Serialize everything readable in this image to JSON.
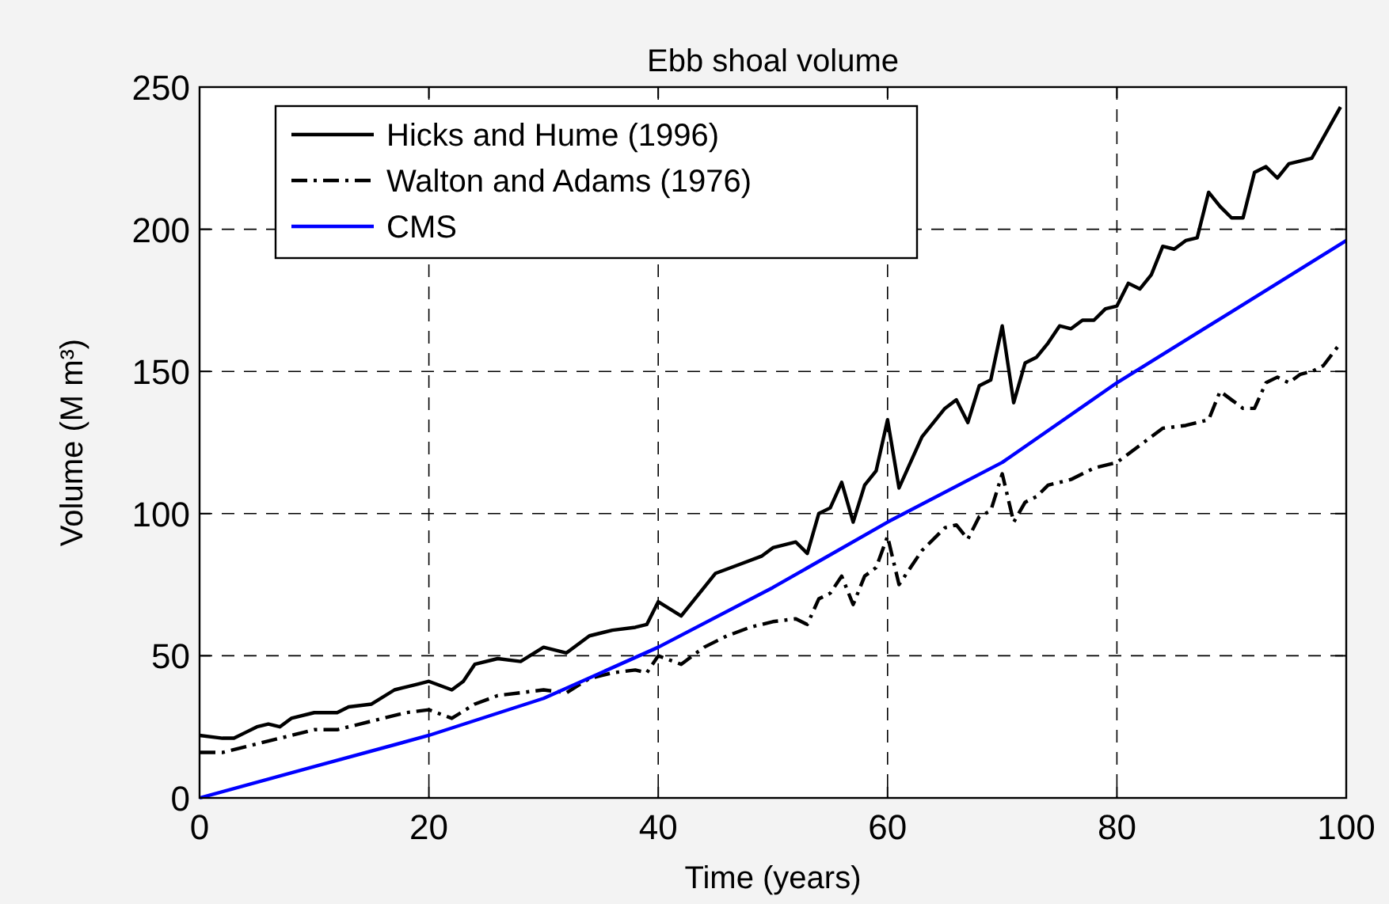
{
  "chart_data": {
    "type": "line",
    "title": "Ebb shoal volume",
    "xlabel": "Time (years)",
    "ylabel": "Volume (M m³)",
    "xlim": [
      0,
      100
    ],
    "ylim": [
      0,
      250
    ],
    "xticks": [
      0,
      20,
      40,
      60,
      80,
      100
    ],
    "yticks": [
      0,
      50,
      100,
      150,
      200,
      250
    ],
    "grid": true,
    "legend": "top left",
    "series": [
      {
        "name": "Hicks and Hume (1996)",
        "color": "#000000",
        "line_style": "solid",
        "x": [
          0,
          2,
          3,
          4,
          5,
          6,
          7,
          8,
          10,
          12,
          13,
          15,
          17,
          19,
          20,
          22,
          23,
          24,
          26,
          28,
          30,
          32,
          34,
          36,
          38,
          39,
          40,
          42,
          45,
          47,
          49,
          50,
          52,
          53,
          54,
          55,
          56,
          57,
          58,
          59,
          60,
          61,
          62,
          63,
          65,
          66,
          67,
          68,
          69,
          70,
          71,
          72,
          73,
          74,
          75,
          76,
          77,
          78,
          79,
          80,
          81,
          82,
          83,
          84,
          85,
          86,
          87,
          88,
          89,
          90,
          91,
          92,
          93,
          94,
          95,
          96,
          97,
          99.5
        ],
        "values": [
          22,
          21,
          21,
          23,
          25,
          26,
          25,
          28,
          30,
          30,
          32,
          33,
          38,
          40,
          41,
          38,
          41,
          47,
          49,
          48,
          53,
          51,
          57,
          59,
          60,
          61,
          69,
          64,
          79,
          82,
          85,
          88,
          90,
          86,
          100,
          102,
          111,
          97,
          110,
          115,
          133,
          109,
          118,
          127,
          137,
          140,
          132,
          145,
          147,
          166,
          139,
          153,
          155,
          160,
          166,
          165,
          168,
          168,
          172,
          173,
          181,
          179,
          184,
          194,
          193,
          196,
          197,
          213,
          208,
          204,
          204,
          220,
          222,
          218,
          223,
          224,
          225,
          243
        ]
      },
      {
        "name": "Walton and Adams (1976)",
        "color": "#000000",
        "line_style": "dashdot",
        "x": [
          0,
          2,
          4,
          6,
          8,
          10,
          12,
          14,
          16,
          18,
          20,
          22,
          24,
          26,
          28,
          30,
          32,
          34,
          36,
          38,
          39,
          40,
          42,
          44,
          46,
          48,
          50,
          52,
          53,
          54,
          55,
          56,
          57,
          58,
          59,
          60,
          61,
          62,
          63,
          65,
          66,
          67,
          68,
          69,
          70,
          71,
          72,
          73,
          74,
          76,
          78,
          80,
          82,
          84,
          86,
          88,
          89,
          90,
          91,
          92,
          93,
          94,
          95,
          96,
          97,
          98,
          99.5
        ],
        "values": [
          16,
          16,
          18,
          20,
          22,
          24,
          24,
          26,
          28,
          30,
          31,
          28,
          33,
          36,
          37,
          38,
          37,
          42,
          44,
          45,
          44,
          50,
          47,
          53,
          57,
          60,
          62,
          63,
          61,
          70,
          72,
          78,
          68,
          78,
          81,
          92,
          75,
          81,
          87,
          95,
          96,
          91,
          99,
          101,
          114,
          97,
          104,
          106,
          110,
          112,
          116,
          118,
          124,
          130,
          131,
          133,
          143,
          140,
          137,
          137,
          146,
          148,
          146,
          149,
          150,
          152,
          160
        ]
      },
      {
        "name": "CMS",
        "color": "#0000ff",
        "line_style": "solid",
        "x": [
          0,
          10,
          20,
          30,
          40,
          50,
          60,
          70,
          80,
          90,
          100
        ],
        "values": [
          0,
          11,
          22,
          35,
          53,
          74,
          97,
          118,
          146,
          171,
          196
        ]
      }
    ]
  }
}
